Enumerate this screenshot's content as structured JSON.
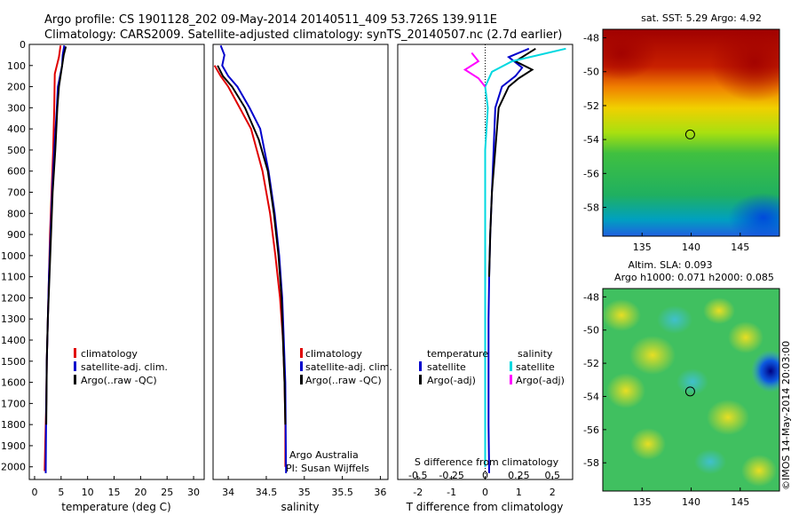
{
  "header": {
    "title_line1": "Argo profile: CS 1901128_202 09-May-2014 20140511_409 53.726S 139.911E",
    "title_line2": "Climatology: CARS2009. Satellite-adjusted climatology: synTS_20140507.nc (2.7d earlier)"
  },
  "colors": {
    "climatology": "#e00000",
    "satellite": "#0000cc",
    "argo": "#000000",
    "salinity_satellite": "#00d8e0",
    "salinity_argo": "#ff00ff"
  },
  "chart_data": [
    {
      "type": "line",
      "xlabel": "temperature (deg C)",
      "xlim": [
        -1,
        32
      ],
      "xticks": [
        "0",
        "5",
        "10",
        "15",
        "20",
        "25",
        "30"
      ],
      "ylim": [
        0,
        2060
      ],
      "yticks": [
        "0",
        "100",
        "200",
        "300",
        "400",
        "500",
        "600",
        "700",
        "800",
        "900",
        "1000",
        "1100",
        "1200",
        "1300",
        "1400",
        "1500",
        "1600",
        "1700",
        "1800",
        "1900",
        "2000"
      ],
      "legend": [
        "climatology",
        "satellite-adj. clim.",
        "Argo(..raw -QC)"
      ],
      "series": [
        {
          "name": "climatology",
          "color": "#e00000",
          "x": [
            4.9,
            4.6,
            3.8,
            3.7,
            3.5,
            3.2,
            2.9,
            2.7,
            2.5,
            2.3,
            2.2,
            2.0,
            1.9
          ],
          "y": [
            5,
            60,
            140,
            300,
            500,
            700,
            900,
            1100,
            1300,
            1500,
            1700,
            1900,
            2020
          ]
        },
        {
          "name": "satellite-adj. clim.",
          "color": "#0000cc",
          "x": [
            5.6,
            5.3,
            5.2,
            4.8,
            4.4,
            4.2,
            3.7,
            3.3,
            3.0,
            2.7,
            2.5,
            2.3,
            2.2,
            2.1
          ],
          "y": [
            5,
            50,
            100,
            150,
            200,
            300,
            500,
            700,
            900,
            1100,
            1300,
            1500,
            1700,
            2030
          ]
        },
        {
          "name": "Argo(..raw -QC)",
          "color": "#000000",
          "x": [
            5.9,
            5.5,
            5.2,
            4.9,
            4.6,
            4.3,
            3.9,
            3.4,
            3.1,
            2.8,
            2.5,
            2.3,
            2.2
          ],
          "y": [
            10,
            50,
            100,
            150,
            200,
            300,
            500,
            700,
            900,
            1100,
            1300,
            1500,
            1800
          ]
        }
      ]
    },
    {
      "type": "line",
      "xlabel": "salinity",
      "xlim": [
        33.8,
        36.1
      ],
      "xticks": [
        "34",
        "34.5",
        "35",
        "35.5",
        "36"
      ],
      "ylim": [
        0,
        2060
      ],
      "legend": [
        "climatology",
        "satellite-adj. clim.",
        "Argo(..raw -QC)"
      ],
      "annotation": [
        "Argo Australia",
        "PI: Susan Wijffels"
      ],
      "series": [
        {
          "name": "climatology",
          "color": "#e00000",
          "x": [
            33.82,
            33.9,
            34.0,
            34.15,
            34.3,
            34.45,
            34.55,
            34.62,
            34.68,
            34.72,
            34.74,
            34.75,
            34.75
          ],
          "y": [
            100,
            150,
            200,
            300,
            400,
            600,
            800,
            1000,
            1200,
            1400,
            1600,
            1800,
            2000
          ]
        },
        {
          "name": "satellite-adj. clim.",
          "color": "#0000cc",
          "x": [
            33.9,
            33.95,
            33.92,
            34.0,
            34.12,
            34.28,
            34.42,
            34.53,
            34.61,
            34.67,
            34.71,
            34.73,
            34.75,
            34.76
          ],
          "y": [
            5,
            50,
            100,
            150,
            200,
            300,
            400,
            600,
            800,
            1000,
            1200,
            1400,
            1600,
            2030
          ]
        },
        {
          "name": "Argo(..raw -QC)",
          "color": "#000000",
          "x": [
            33.86,
            33.93,
            34.05,
            34.22,
            34.4,
            34.52,
            34.6,
            34.66,
            34.7,
            34.72,
            34.74,
            34.75
          ],
          "y": [
            100,
            150,
            200,
            300,
            450,
            600,
            800,
            1000,
            1200,
            1400,
            1600,
            1800
          ]
        }
      ]
    },
    {
      "type": "line",
      "xlabel": "T difference from climatology",
      "x2label": "S difference from climatology",
      "xlim": [
        -2.6,
        2.6
      ],
      "xticks": [
        "-2",
        "-1",
        "0",
        "1",
        "2"
      ],
      "x2lim": [
        -0.65,
        0.65
      ],
      "x2ticks": [
        "-0.5",
        "-0.25",
        "0",
        "0.25",
        "0.5"
      ],
      "ylim": [
        0,
        2060
      ],
      "legend_left_title": "temperature",
      "legend_left": [
        "satellite",
        "Argo(-adj)"
      ],
      "legend_right_title": "salinity",
      "legend_right": [
        "satellite",
        "Argo(-adj)"
      ],
      "series": [
        {
          "name": "temperature satellite",
          "color": "#0000cc",
          "x": [
            1.3,
            0.7,
            1.1,
            0.9,
            0.5,
            0.3,
            0.25,
            0.2,
            0.15,
            0.12,
            0.1,
            0.1,
            0.1,
            0.12
          ],
          "y": [
            20,
            60,
            110,
            150,
            200,
            300,
            500,
            700,
            900,
            1100,
            1300,
            1500,
            1800,
            2030
          ]
        },
        {
          "name": "temperature Argo(-adj)",
          "color": "#000000",
          "x": [
            1.5,
            0.9,
            1.4,
            1.0,
            0.7,
            0.4,
            0.3,
            0.2,
            0.15,
            0.12
          ],
          "y": [
            20,
            80,
            120,
            160,
            200,
            300,
            500,
            700,
            900,
            1100
          ]
        },
        {
          "name": "salinity satellite",
          "color": "#00d8e0",
          "x": [
            0.6,
            0.2,
            0.05,
            0.0,
            0.02,
            0.0,
            0.0,
            0.0,
            0.0,
            0.0,
            0.0
          ],
          "y": [
            20,
            80,
            130,
            200,
            300,
            500,
            700,
            900,
            1200,
            1600,
            2000
          ]
        },
        {
          "name": "salinity Argo(-adj)",
          "color": "#ff00ff",
          "x": [
            -0.1,
            -0.05,
            -0.15,
            -0.05,
            0.0
          ],
          "y": [
            40,
            80,
            120,
            160,
            200
          ]
        }
      ]
    },
    {
      "type": "heatmap",
      "title": "sat. SST: 5.29  Argo: 4.92",
      "xticks": [
        "135",
        "140",
        "145"
      ],
      "yticks": [
        "-48",
        "-50",
        "-52",
        "-54",
        "-56",
        "-58"
      ],
      "xlim": [
        131,
        149
      ],
      "ylim": [
        -59.7,
        -47.5
      ],
      "marker": {
        "lon": 139.9,
        "lat": -53.7
      }
    },
    {
      "type": "heatmap",
      "title_line1": "Altim. SLA: 0.093",
      "title_line2": "Argo h1000: 0.071  h2000: 0.085",
      "xticks": [
        "135",
        "140",
        "145"
      ],
      "yticks": [
        "-48",
        "-50",
        "-52",
        "-54",
        "-56",
        "-58"
      ],
      "xlim": [
        131,
        149
      ],
      "ylim": [
        -59.7,
        -47.5
      ],
      "marker": {
        "lon": 139.9,
        "lat": -53.7
      }
    }
  ],
  "footer_note": "©IMOS 14-May-2014 20:03:00"
}
